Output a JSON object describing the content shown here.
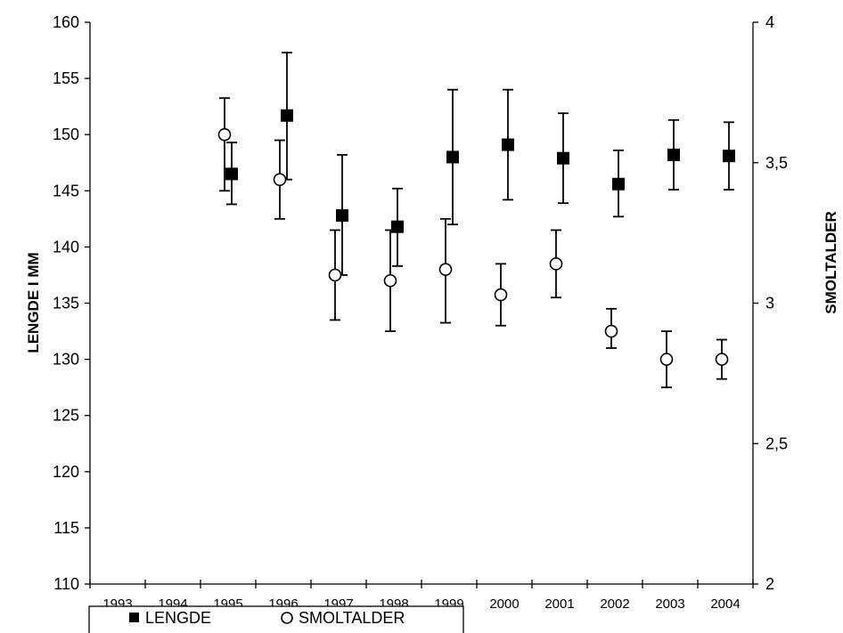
{
  "chart_data": {
    "type": "scatter",
    "categories": [
      "1993",
      "1994",
      "1995",
      "1996",
      "1997",
      "1998",
      "1999",
      "2000",
      "2001",
      "2002",
      "2003",
      "2004"
    ],
    "y_left": {
      "label": "LENGDE I MM",
      "lim": [
        110,
        160
      ],
      "ticks": [
        "110",
        "115",
        "120",
        "125",
        "130",
        "135",
        "140",
        "145",
        "150",
        "155",
        "160"
      ],
      "tick_values": [
        110,
        115,
        120,
        125,
        130,
        135,
        140,
        145,
        150,
        155,
        160
      ]
    },
    "y_right": {
      "label": "SMOLTALDER",
      "lim": [
        2,
        4
      ],
      "ticks": [
        "2",
        "2,5",
        "3",
        "3,5",
        "4"
      ],
      "tick_values": [
        2,
        2.5,
        3,
        3.5,
        4
      ]
    },
    "series": [
      {
        "name": "LENGDE",
        "axis": "left",
        "marker": "filled-square",
        "values": [
          null,
          null,
          146.5,
          151.7,
          142.8,
          141.8,
          148.0,
          149.1,
          147.9,
          145.6,
          148.2,
          148.1
        ],
        "err_low": [
          null,
          null,
          143.8,
          146.0,
          137.5,
          138.3,
          142.0,
          144.2,
          143.9,
          142.7,
          145.1,
          145.1
        ],
        "err_high": [
          null,
          null,
          149.3,
          157.3,
          148.2,
          145.2,
          154.0,
          154.0,
          151.9,
          148.6,
          151.3,
          151.1
        ]
      },
      {
        "name": "SMOLTALDER",
        "axis": "right",
        "marker": "open-circle",
        "values": [
          null,
          null,
          3.6,
          3.44,
          3.1,
          3.08,
          3.12,
          3.03,
          3.14,
          2.9,
          2.8,
          2.8
        ],
        "err_low": [
          null,
          null,
          3.4,
          3.3,
          2.94,
          2.9,
          2.93,
          2.92,
          3.02,
          2.84,
          2.7,
          2.73
        ],
        "err_high": [
          null,
          null,
          3.73,
          3.58,
          3.26,
          3.26,
          3.3,
          3.14,
          3.26,
          2.98,
          2.9,
          2.87
        ]
      }
    ],
    "legend": {
      "position": "bottom-left",
      "items": [
        "LENGDE",
        "SMOLTALDER"
      ]
    },
    "grid": false
  }
}
